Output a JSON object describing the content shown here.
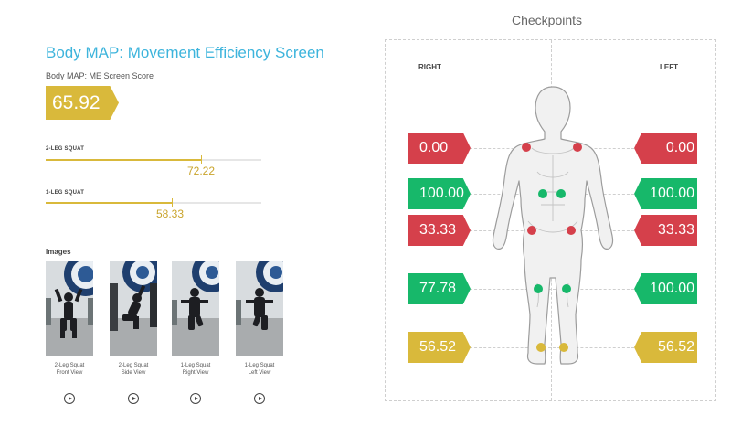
{
  "header": {
    "title": "Body MAP: Movement Efficiency Screen",
    "score_label": "Body MAP: ME Screen Score",
    "score_value": "65.92"
  },
  "metrics": [
    {
      "label": "2-LEG SQUAT",
      "value": "72.22",
      "fraction": 0.7222
    },
    {
      "label": "1-LEG SQUAT",
      "value": "58.33",
      "fraction": 0.5833
    }
  ],
  "images": {
    "heading": "Images",
    "items": [
      {
        "caption_line1": "2-Leg Squat",
        "caption_line2": "Front View",
        "play_icon": "play-icon"
      },
      {
        "caption_line1": "2-Leg Squat",
        "caption_line2": "Side View",
        "play_icon": "play-icon"
      },
      {
        "caption_line1": "1-Leg Squat",
        "caption_line2": "Right View",
        "play_icon": "play-icon"
      },
      {
        "caption_line1": "1-Leg Squat",
        "caption_line2": "Left View",
        "play_icon": "play-icon"
      }
    ]
  },
  "checkpoints": {
    "heading": "Checkpoints",
    "right_label": "RIGHT",
    "left_label": "LEFT",
    "rows": [
      {
        "name": "shoulders",
        "right": "0.00",
        "left": "0.00",
        "right_color": "#d5404b",
        "left_color": "#d5404b"
      },
      {
        "name": "core",
        "right": "100.00",
        "left": "100.00",
        "right_color": "#17b86a",
        "left_color": "#17b86a"
      },
      {
        "name": "hips",
        "right": "33.33",
        "left": "33.33",
        "right_color": "#d5404b",
        "left_color": "#d5404b"
      },
      {
        "name": "knees",
        "right": "77.78",
        "left": "100.00",
        "right_color": "#17b86a",
        "left_color": "#17b86a"
      },
      {
        "name": "ankles",
        "right": "56.52",
        "left": "56.52",
        "right_color": "#d9b93b",
        "left_color": "#d9b93b"
      }
    ]
  },
  "colors": {
    "accent_blue": "#3db4dc",
    "gold": "#d9b93b",
    "red": "#d5404b",
    "green": "#17b86a"
  }
}
